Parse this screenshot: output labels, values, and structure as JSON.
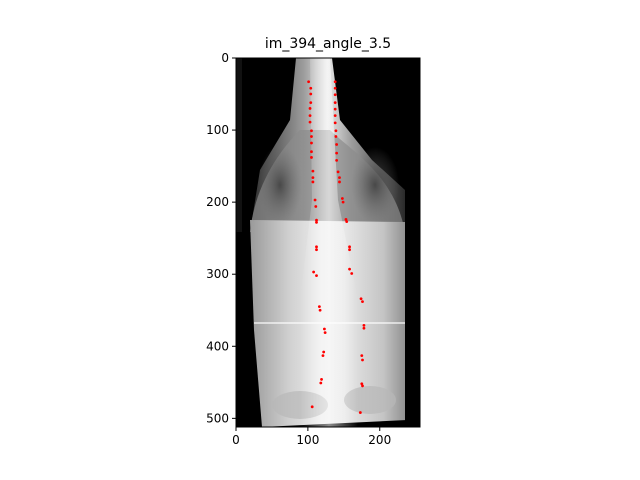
{
  "figure": {
    "title": "im_394_angle_3.5",
    "x_ticks": [
      0,
      100,
      200
    ],
    "y_ticks": [
      0,
      100,
      200,
      300,
      400,
      500
    ],
    "x_range": [
      0,
      256
    ],
    "y_range": [
      0,
      512
    ],
    "marker_color": "#ff0000",
    "frame_color": "#000000",
    "image_content": "grayscale spine x-ray (posterior view)"
  },
  "chart_data": {
    "type": "scatter",
    "title": "im_394_angle_3.5",
    "xlabel": "",
    "ylabel": "",
    "xlim": [
      0,
      256
    ],
    "ylim": [
      512,
      0
    ],
    "points": [
      [
        101,
        33
      ],
      [
        138,
        33
      ],
      [
        104,
        42
      ],
      [
        138,
        42
      ],
      [
        104,
        50
      ],
      [
        138,
        51
      ],
      [
        104,
        62
      ],
      [
        138,
        62
      ],
      [
        103,
        70
      ],
      [
        138,
        71
      ],
      [
        103,
        80
      ],
      [
        138,
        80
      ],
      [
        103,
        89
      ],
      [
        138,
        90
      ],
      [
        105,
        101
      ],
      [
        139,
        101
      ],
      [
        105,
        109
      ],
      [
        139,
        109
      ],
      [
        105,
        118
      ],
      [
        140,
        120
      ],
      [
        105,
        130
      ],
      [
        140,
        132
      ],
      [
        105,
        138
      ],
      [
        140,
        142
      ],
      [
        107,
        157
      ],
      [
        142,
        158
      ],
      [
        107,
        166
      ],
      [
        144,
        166
      ],
      [
        107,
        172
      ],
      [
        144,
        172
      ],
      [
        110,
        197
      ],
      [
        148,
        195
      ],
      [
        111,
        206
      ],
      [
        149,
        200
      ],
      [
        112,
        225
      ],
      [
        153,
        224
      ],
      [
        112,
        228
      ],
      [
        154,
        227
      ],
      [
        112,
        262
      ],
      [
        158,
        262
      ],
      [
        112,
        266
      ],
      [
        158,
        266
      ],
      [
        108,
        297
      ],
      [
        158,
        293
      ],
      [
        112,
        302
      ],
      [
        161,
        299
      ],
      [
        116,
        345
      ],
      [
        174,
        334
      ],
      [
        117,
        350
      ],
      [
        176,
        338
      ],
      [
        123,
        376
      ],
      [
        178,
        371
      ],
      [
        124,
        381
      ],
      [
        178,
        375
      ],
      [
        122,
        408
      ],
      [
        175,
        413
      ],
      [
        121,
        413
      ],
      [
        176,
        419
      ],
      [
        119,
        446
      ],
      [
        175,
        452
      ],
      [
        118,
        451
      ],
      [
        176,
        455
      ],
      [
        106,
        484
      ],
      [
        173,
        492
      ]
    ]
  }
}
